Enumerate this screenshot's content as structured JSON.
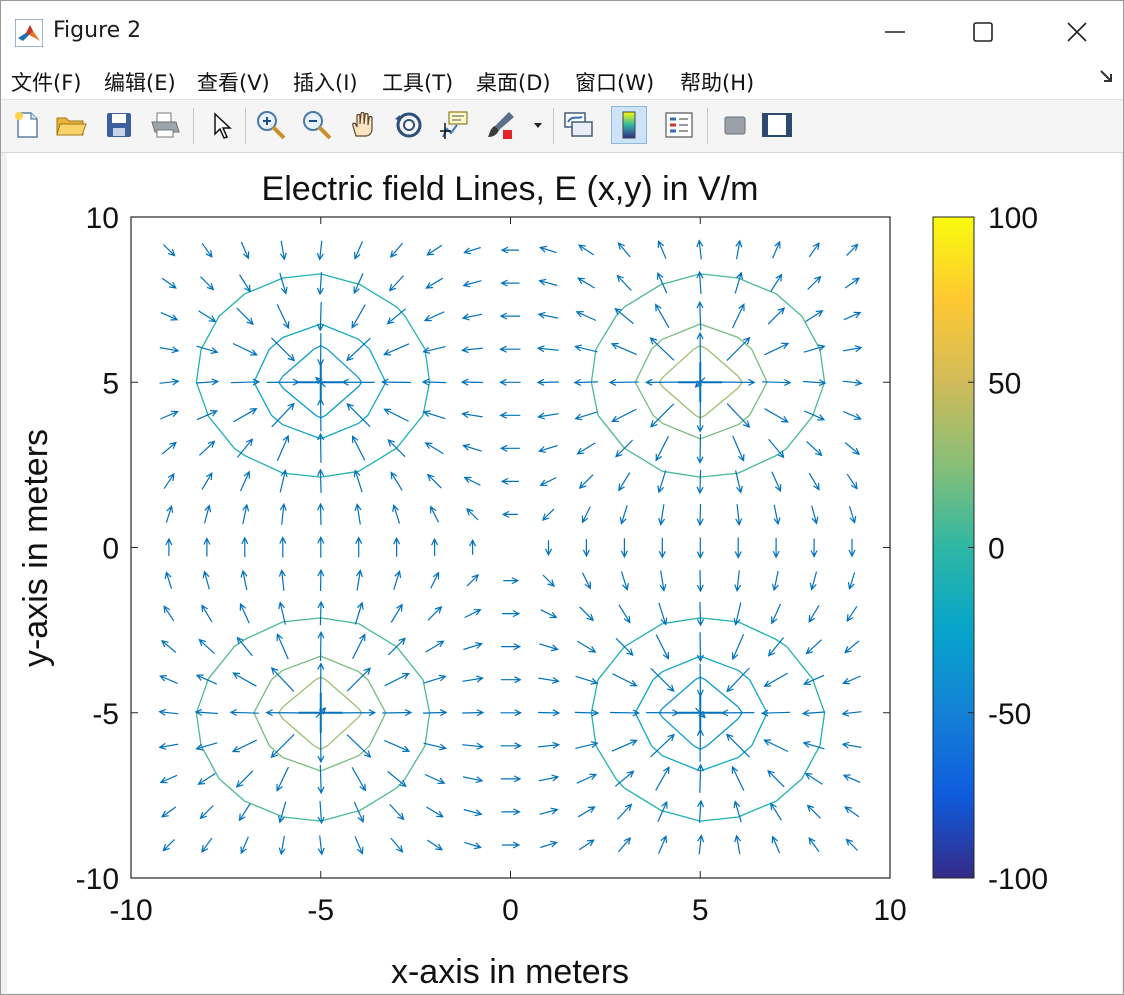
{
  "window": {
    "title": "Figure 2",
    "icons": {
      "app": "matlab-logo-icon",
      "minimize": "minimize-icon",
      "maximize": "maximize-icon",
      "close": "close-icon"
    }
  },
  "menu": {
    "items": [
      "文件(F)",
      "编辑(E)",
      "查看(V)",
      "插入(I)",
      "工具(T)",
      "桌面(D)",
      "窗口(W)",
      "帮助(H)"
    ],
    "overflow_icon": "dock-arrow-icon"
  },
  "toolbar": {
    "buttons": [
      {
        "name": "new-figure",
        "icon": "new-document-icon"
      },
      {
        "name": "open-file",
        "icon": "folder-open-icon"
      },
      {
        "name": "save",
        "icon": "save-icon"
      },
      {
        "name": "print",
        "icon": "print-icon"
      },
      {
        "name": "edit-plot",
        "icon": "pointer-arrow-icon"
      },
      {
        "name": "zoom-in",
        "icon": "zoom-in-icon"
      },
      {
        "name": "zoom-out",
        "icon": "zoom-out-icon"
      },
      {
        "name": "pan",
        "icon": "pan-hand-icon"
      },
      {
        "name": "rotate-3d",
        "icon": "rotate-3d-icon"
      },
      {
        "name": "data-cursor",
        "icon": "data-cursor-icon"
      },
      {
        "name": "brush",
        "icon": "brush-icon"
      },
      {
        "name": "link-plot",
        "icon": "link-plot-icon"
      },
      {
        "name": "insert-colorbar",
        "icon": "colorbar-icon"
      },
      {
        "name": "insert-legend",
        "icon": "legend-icon"
      },
      {
        "name": "hide-plot-tools",
        "icon": "hide-tools-icon"
      },
      {
        "name": "show-plot-tools",
        "icon": "show-tools-icon"
      }
    ],
    "active": "insert-colorbar"
  },
  "chart_data": {
    "type": "quiver+contour",
    "title": "Electric field Lines, E (x,y) in V/m",
    "xlabel": "x-axis in meters",
    "ylabel": "y-axis in meters",
    "xlim": [
      -10,
      10
    ],
    "ylim": [
      -10,
      10
    ],
    "xticks": [
      "-10",
      "-5",
      "0",
      "5",
      "10"
    ],
    "yticks": [
      "10",
      "5",
      "0",
      "-5",
      "-10"
    ],
    "grid": false,
    "charges": [
      {
        "x": -5,
        "y": 5,
        "sign": "negative"
      },
      {
        "x": 5,
        "y": 5,
        "sign": "positive"
      },
      {
        "x": -5,
        "y": -5,
        "sign": "positive"
      },
      {
        "x": 5,
        "y": -5,
        "sign": "negative"
      }
    ],
    "quiver_color": "#0072bd",
    "colorbar": {
      "range": [
        -100,
        100
      ],
      "ticks": [
        "100",
        "50",
        "0",
        "-50",
        "-100"
      ],
      "colormap": "parula",
      "stops": [
        "#352a87",
        "#0f5cdd",
        "#1481d6",
        "#06a4ca",
        "#2eb7a4",
        "#87bf77",
        "#d1bb59",
        "#fec832",
        "#f9fb0e"
      ]
    }
  }
}
